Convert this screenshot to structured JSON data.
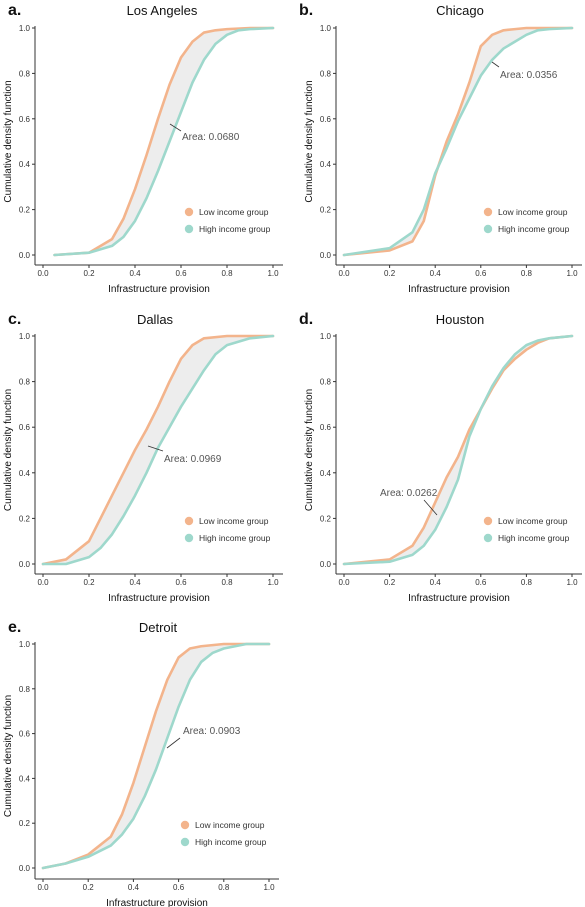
{
  "colors": {
    "low": "#F3B48C",
    "high": "#9ED8CC",
    "fill": "#EDEDED",
    "axis": "#333333",
    "label": "#555555"
  },
  "legend": {
    "low": "Low income group",
    "high": "High income group"
  },
  "axis": {
    "xlabel": "Infrastructure provision",
    "ylabel": "Cumulative density function",
    "xticks": [
      "0.0",
      "0.2",
      "0.4",
      "0.6",
      "0.8",
      "1.0"
    ],
    "yticks": [
      "0.0",
      "0.2",
      "0.4",
      "0.6",
      "0.8",
      "1.0"
    ]
  },
  "chart_data": [
    {
      "type": "line",
      "panel": "a.",
      "title": "Los Angeles",
      "xlabel": "Infrastructure provision",
      "ylabel": "Cumulative density function",
      "xlim": [
        0,
        1
      ],
      "ylim": [
        0,
        1
      ],
      "legend_position": "bottom-right",
      "annotation": "Area: 0.0680",
      "series": [
        {
          "name": "Low income group",
          "x": [
            0.05,
            0.2,
            0.3,
            0.35,
            0.4,
            0.45,
            0.5,
            0.55,
            0.6,
            0.65,
            0.7,
            0.75,
            0.8,
            0.9,
            1.0
          ],
          "y": [
            0.0,
            0.01,
            0.07,
            0.16,
            0.29,
            0.44,
            0.6,
            0.75,
            0.87,
            0.94,
            0.98,
            0.99,
            0.995,
            1.0,
            1.0
          ]
        },
        {
          "name": "High income group",
          "x": [
            0.05,
            0.2,
            0.3,
            0.35,
            0.4,
            0.45,
            0.5,
            0.55,
            0.6,
            0.65,
            0.7,
            0.75,
            0.8,
            0.85,
            0.9,
            1.0
          ],
          "y": [
            0.0,
            0.01,
            0.04,
            0.08,
            0.15,
            0.25,
            0.37,
            0.5,
            0.63,
            0.76,
            0.86,
            0.93,
            0.97,
            0.99,
            0.995,
            1.0
          ]
        }
      ]
    },
    {
      "type": "line",
      "panel": "b.",
      "title": "Chicago",
      "xlabel": "Infrastructure provision",
      "ylabel": "Cumulative density function",
      "xlim": [
        0,
        1
      ],
      "ylim": [
        0,
        1
      ],
      "legend_position": "bottom-right",
      "annotation": "Area: 0.0356",
      "series": [
        {
          "name": "Low income group",
          "x": [
            0.0,
            0.2,
            0.3,
            0.35,
            0.4,
            0.45,
            0.5,
            0.55,
            0.6,
            0.65,
            0.7,
            0.75,
            0.8,
            1.0
          ],
          "y": [
            0.0,
            0.02,
            0.06,
            0.15,
            0.35,
            0.5,
            0.62,
            0.76,
            0.92,
            0.97,
            0.99,
            0.995,
            1.0,
            1.0
          ]
        },
        {
          "name": "High income group",
          "x": [
            0.0,
            0.2,
            0.3,
            0.35,
            0.4,
            0.45,
            0.5,
            0.55,
            0.6,
            0.65,
            0.7,
            0.75,
            0.8,
            0.85,
            0.9,
            1.0
          ],
          "y": [
            0.0,
            0.03,
            0.1,
            0.2,
            0.36,
            0.47,
            0.59,
            0.69,
            0.79,
            0.86,
            0.91,
            0.94,
            0.97,
            0.99,
            0.995,
            1.0
          ]
        }
      ]
    },
    {
      "type": "line",
      "panel": "c.",
      "title": "Dallas",
      "xlabel": "Infrastructure provision",
      "ylabel": "Cumulative density function",
      "xlim": [
        0,
        1
      ],
      "ylim": [
        0,
        1
      ],
      "legend_position": "bottom-right",
      "annotation": "Area: 0.0969",
      "series": [
        {
          "name": "Low income group",
          "x": [
            0.0,
            0.1,
            0.2,
            0.25,
            0.3,
            0.35,
            0.4,
            0.45,
            0.5,
            0.55,
            0.6,
            0.65,
            0.7,
            0.8,
            1.0
          ],
          "y": [
            0.0,
            0.02,
            0.1,
            0.2,
            0.3,
            0.4,
            0.5,
            0.59,
            0.69,
            0.8,
            0.9,
            0.96,
            0.99,
            1.0,
            1.0
          ]
        },
        {
          "name": "High income group",
          "x": [
            0.0,
            0.1,
            0.2,
            0.25,
            0.3,
            0.35,
            0.4,
            0.45,
            0.5,
            0.55,
            0.6,
            0.65,
            0.7,
            0.75,
            0.8,
            0.9,
            1.0
          ],
          "y": [
            0.0,
            0.0,
            0.03,
            0.07,
            0.13,
            0.21,
            0.3,
            0.4,
            0.51,
            0.6,
            0.69,
            0.77,
            0.85,
            0.92,
            0.96,
            0.99,
            1.0
          ]
        }
      ]
    },
    {
      "type": "line",
      "panel": "d.",
      "title": "Houston",
      "xlabel": "Infrastructure provision",
      "ylabel": "Cumulative density function",
      "xlim": [
        0,
        1
      ],
      "ylim": [
        0,
        1
      ],
      "legend_position": "bottom-right",
      "annotation": "Area: 0.0262",
      "series": [
        {
          "name": "Low income group",
          "x": [
            0.0,
            0.2,
            0.3,
            0.35,
            0.4,
            0.45,
            0.5,
            0.55,
            0.6,
            0.65,
            0.7,
            0.75,
            0.8,
            0.85,
            0.9,
            1.0
          ],
          "y": [
            0.0,
            0.02,
            0.08,
            0.16,
            0.27,
            0.38,
            0.47,
            0.59,
            0.68,
            0.77,
            0.85,
            0.9,
            0.94,
            0.97,
            0.99,
            1.0
          ]
        },
        {
          "name": "High income group",
          "x": [
            0.0,
            0.2,
            0.3,
            0.35,
            0.4,
            0.45,
            0.5,
            0.55,
            0.6,
            0.65,
            0.7,
            0.75,
            0.8,
            0.85,
            0.9,
            1.0
          ],
          "y": [
            0.0,
            0.01,
            0.04,
            0.08,
            0.15,
            0.25,
            0.37,
            0.56,
            0.68,
            0.78,
            0.86,
            0.92,
            0.96,
            0.98,
            0.99,
            1.0
          ]
        }
      ]
    },
    {
      "type": "line",
      "panel": "e.",
      "title": "Detroit",
      "xlabel": "Infrastructure provision",
      "ylabel": "Cumulative density function",
      "xlim": [
        0,
        1
      ],
      "ylim": [
        0,
        1
      ],
      "legend_position": "bottom-right",
      "annotation": "Area: 0.0903",
      "series": [
        {
          "name": "Low income group",
          "x": [
            0.0,
            0.1,
            0.2,
            0.3,
            0.35,
            0.4,
            0.45,
            0.5,
            0.55,
            0.6,
            0.65,
            0.7,
            0.75,
            0.8,
            1.0
          ],
          "y": [
            0.0,
            0.02,
            0.06,
            0.14,
            0.24,
            0.38,
            0.54,
            0.7,
            0.84,
            0.94,
            0.98,
            0.99,
            0.995,
            1.0,
            1.0
          ]
        },
        {
          "name": "High income group",
          "x": [
            0.0,
            0.1,
            0.2,
            0.3,
            0.35,
            0.4,
            0.45,
            0.5,
            0.55,
            0.6,
            0.65,
            0.7,
            0.75,
            0.8,
            0.85,
            0.9,
            1.0
          ],
          "y": [
            0.0,
            0.02,
            0.05,
            0.1,
            0.15,
            0.22,
            0.32,
            0.44,
            0.58,
            0.72,
            0.84,
            0.92,
            0.96,
            0.98,
            0.99,
            1.0,
            1.0
          ]
        }
      ]
    }
  ]
}
